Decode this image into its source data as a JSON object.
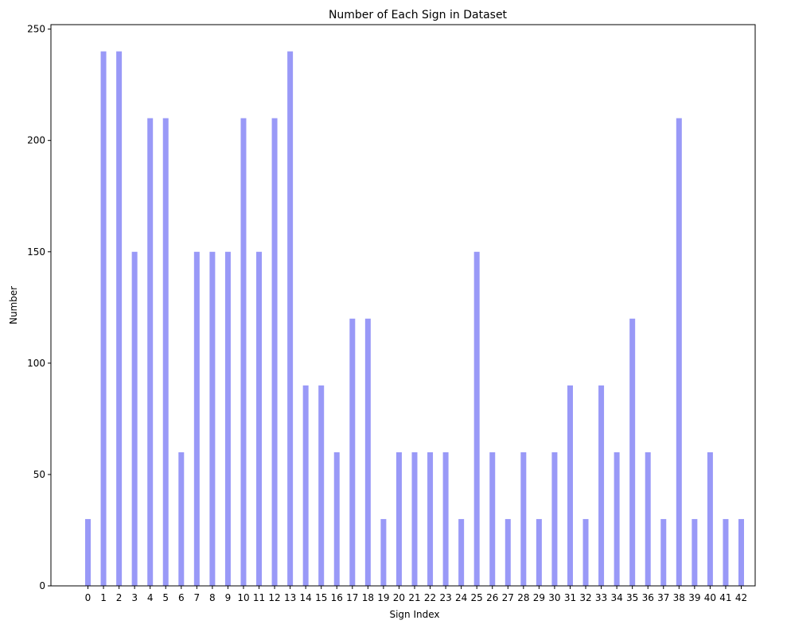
{
  "chart_data": {
    "type": "bar",
    "title": "Number of Each Sign in Dataset",
    "xlabel": "Sign Index",
    "ylabel": "Number",
    "categories": [
      "0",
      "1",
      "2",
      "3",
      "4",
      "5",
      "6",
      "7",
      "8",
      "9",
      "10",
      "11",
      "12",
      "13",
      "14",
      "15",
      "16",
      "17",
      "18",
      "19",
      "20",
      "21",
      "22",
      "23",
      "24",
      "25",
      "26",
      "27",
      "28",
      "29",
      "30",
      "31",
      "32",
      "33",
      "34",
      "35",
      "36",
      "37",
      "38",
      "39",
      "40",
      "41",
      "42"
    ],
    "values": [
      30,
      240,
      240,
      150,
      210,
      210,
      60,
      150,
      150,
      150,
      210,
      150,
      210,
      240,
      90,
      90,
      60,
      120,
      120,
      30,
      60,
      60,
      60,
      60,
      30,
      150,
      60,
      30,
      60,
      30,
      60,
      90,
      30,
      90,
      60,
      120,
      60,
      30,
      210,
      30,
      60,
      30,
      30
    ],
    "ylim": [
      0,
      252
    ],
    "yticks": [
      0,
      50,
      100,
      150,
      200,
      250
    ],
    "bar_color": "#9999f7",
    "grid": false,
    "legend": "none"
  }
}
